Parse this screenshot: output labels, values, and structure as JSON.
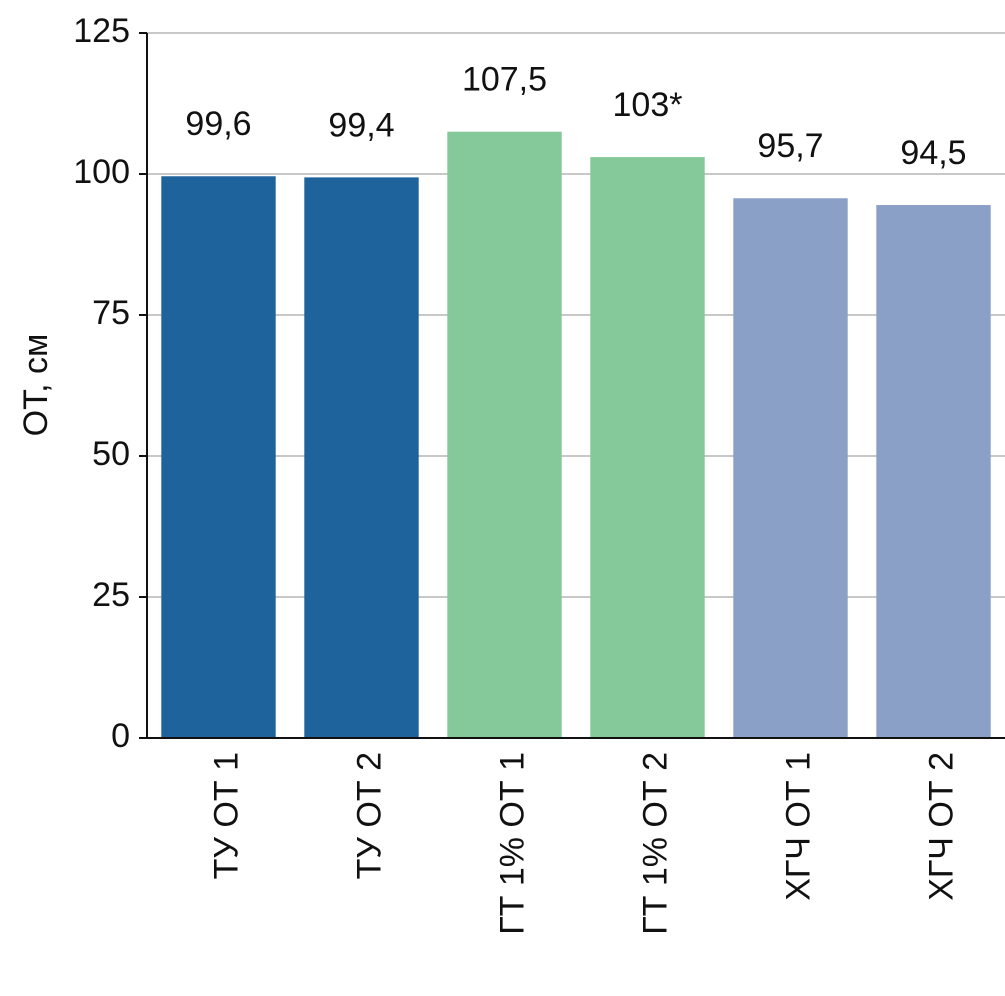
{
  "chart_data": {
    "type": "bar",
    "y_label": "ОТ, см",
    "categories": [
      "ТУ ОТ 1",
      "ТУ ОТ 2",
      "ГТ 1% ОТ 1",
      "ГТ 1% ОТ 2",
      "ХГЧ ОТ 1",
      "ХГЧ ОТ 2"
    ],
    "values": [
      99.6,
      99.4,
      107.5,
      103,
      95.7,
      94.5
    ],
    "value_labels": [
      "99,6",
      "99,4",
      "107,5",
      "103*",
      "95,7",
      "94,5"
    ],
    "colors": [
      "#1f639c",
      "#1f639c",
      "#85c99b",
      "#85c99b",
      "#8aa0c6",
      "#8aa0c6"
    ],
    "ylim": [
      0,
      125
    ],
    "yticks": [
      0,
      25,
      50,
      75,
      100,
      125
    ],
    "grid": true
  }
}
